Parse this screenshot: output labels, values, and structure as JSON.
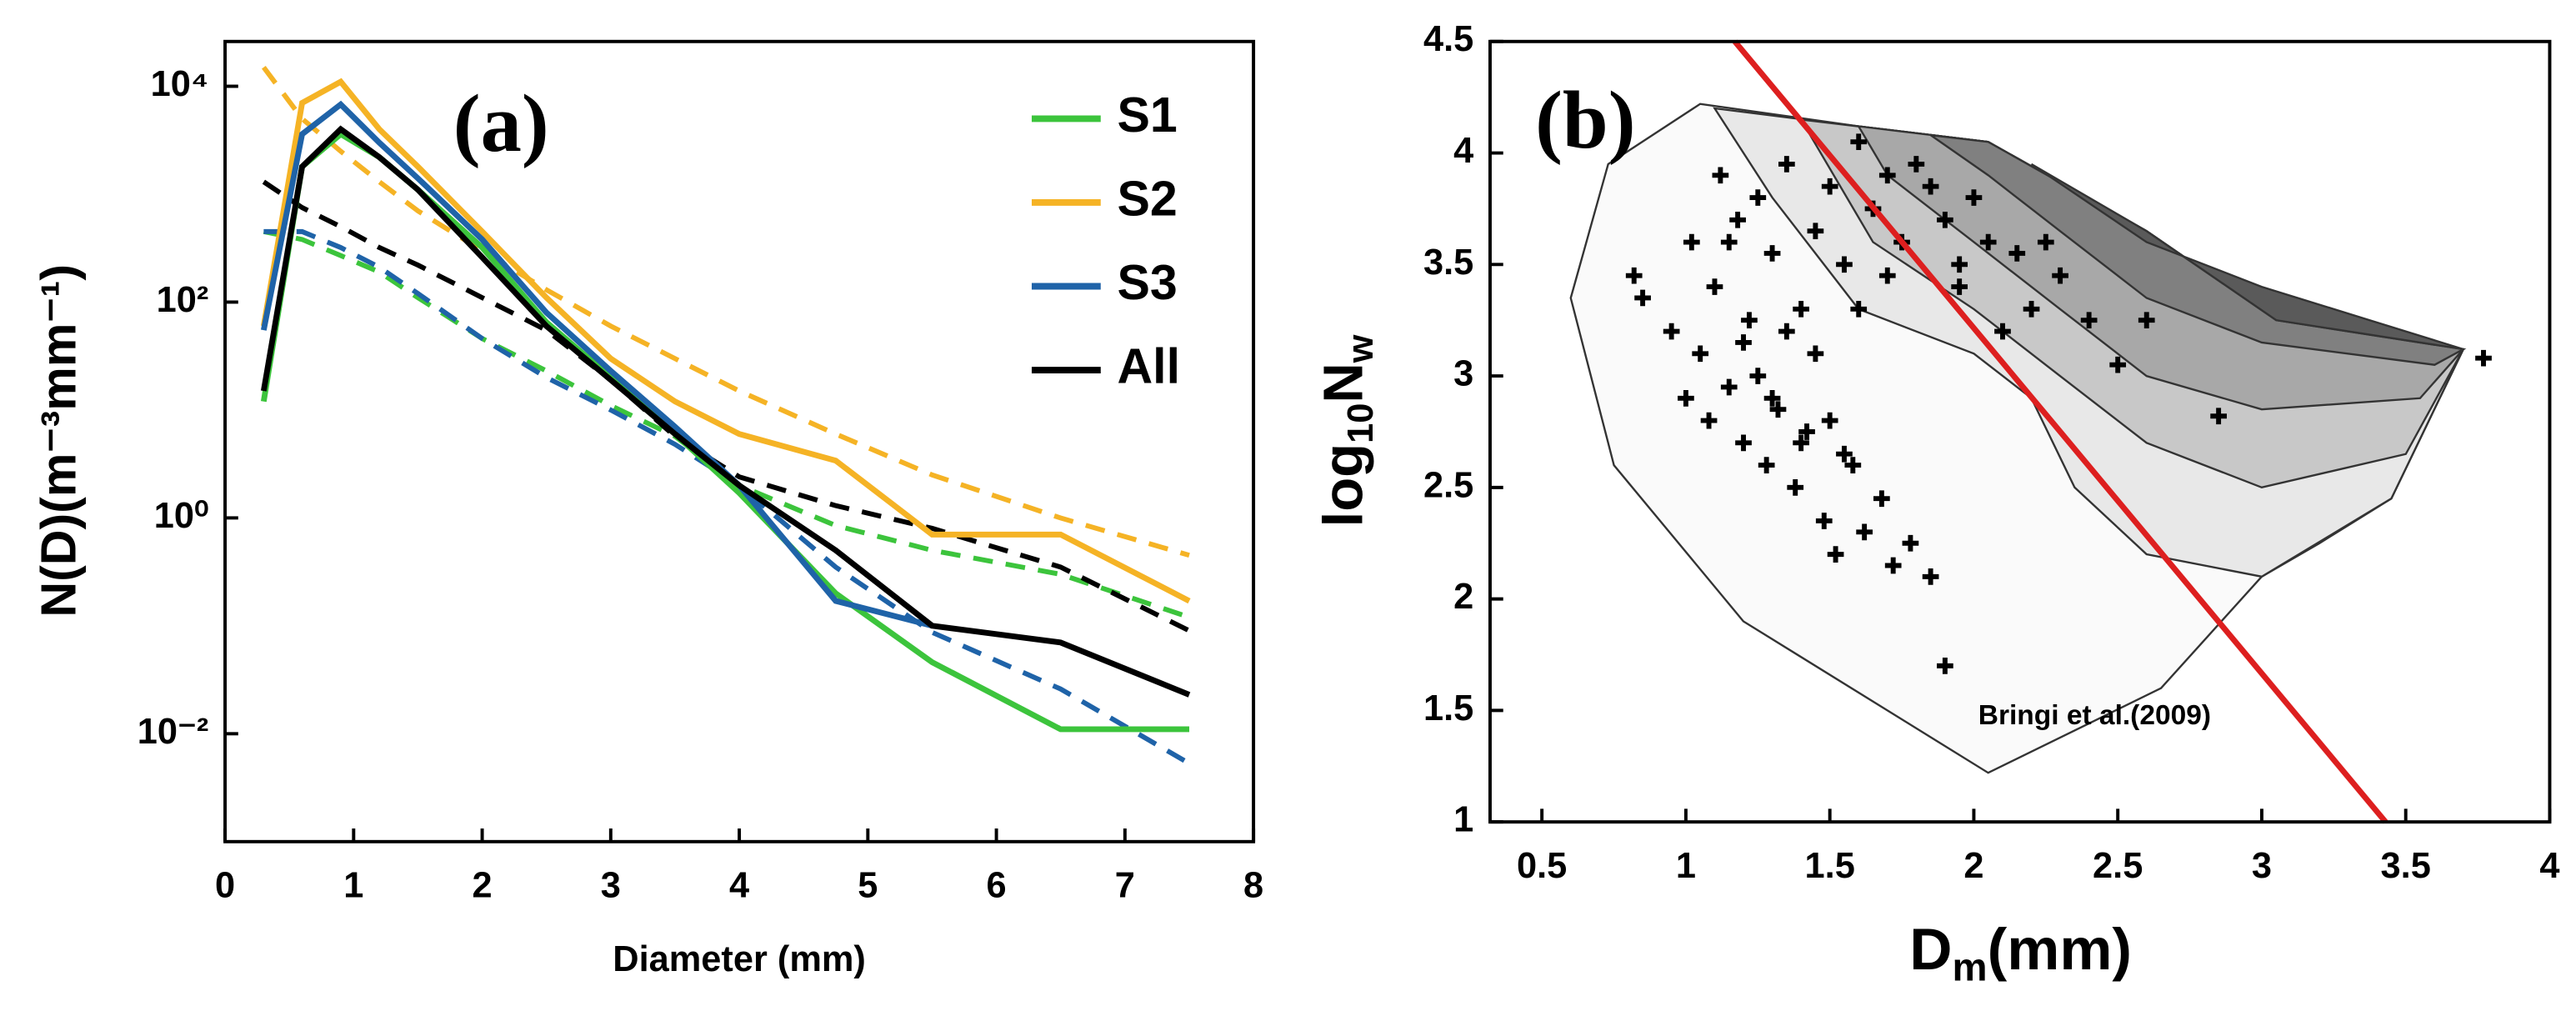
{
  "chart_data": [
    {
      "type": "line",
      "annotation": "(a)",
      "x_label": "Diameter (mm)",
      "y_label": "N(D)(m⁻³mm⁻¹)",
      "log_y": true,
      "legend": "upper right",
      "x": [
        0.3,
        0.6,
        0.9,
        1.2,
        1.5,
        2,
        2.5,
        3,
        3.5,
        4,
        4.75,
        5.5,
        6.5,
        7.5
      ],
      "xlim": [
        0,
        8
      ],
      "xticks": [
        0,
        1,
        2,
        3,
        4,
        5,
        6,
        7,
        8
      ],
      "ylim": [
        0.001,
        26000
      ],
      "yticks": [
        {
          "value": 0.01,
          "label": "10⁻²"
        },
        {
          "value": 1,
          "label": "10⁰"
        },
        {
          "value": 100,
          "label": "10²"
        },
        {
          "value": 10000,
          "label": "10⁴"
        }
      ],
      "series": [
        {
          "name": "S1",
          "color": "#3cc43c",
          "values": [
            12,
            1800,
            3600,
            2200,
            1100,
            320,
            65,
            20,
            6,
            1.7,
            0.2,
            0.046,
            0.011,
            0.011
          ],
          "fit": [
            450,
            380,
            270,
            190,
            110,
            46,
            23,
            11,
            5.7,
            2,
            0.85,
            0.5,
            0.3,
            0.12
          ]
        },
        {
          "name": "S2",
          "color": "#f5b325",
          "values": [
            60,
            7000,
            11000,
            4000,
            1800,
            450,
            110,
            30,
            12,
            6,
            3.4,
            0.7,
            0.7,
            0.17
          ],
          "fit": [
            15000,
            5000,
            2500,
            1300,
            700,
            300,
            130,
            60,
            30,
            15,
            6,
            2.5,
            1,
            0.45
          ]
        },
        {
          "name": "S3",
          "color": "#1f63a8",
          "values": [
            55,
            3600,
            6800,
            3000,
            1400,
            380,
            80,
            23,
            7,
            2,
            0.17,
            0.1,
            null,
            null
          ],
          "fit": [
            450,
            450,
            320,
            210,
            120,
            46,
            20,
            10,
            4.8,
            2,
            0.35,
            0.087,
            0.026,
            0.0053
          ]
        },
        {
          "name": "All",
          "color": "#000000",
          "values": [
            15,
            1800,
            4000,
            2200,
            1100,
            260,
            60,
            19,
            6,
            2,
            0.5,
            0.1,
            0.07,
            0.023
          ],
          "fit": [
            1300,
            750,
            500,
            320,
            220,
            110,
            55,
            19,
            5.7,
            2.4,
            1.3,
            0.8,
            0.35,
            0.09
          ]
        }
      ]
    },
    {
      "type": "scatter",
      "annotation": "(b)",
      "x_label": [
        "D",
        "m",
        "(mm)"
      ],
      "y_label": [
        "log",
        "10",
        "N",
        "w"
      ],
      "reference_label": "Bringi et al.(2009)",
      "xlim": [
        0.32,
        4
      ],
      "xticks": [
        0.5,
        1,
        1.5,
        2,
        2.5,
        3,
        3.5,
        4
      ],
      "ylim": [
        1,
        4.5
      ],
      "yticks": [
        1,
        1.5,
        2,
        2.5,
        3,
        3.5,
        4,
        4.5
      ],
      "reference_line": {
        "color": "#dd1f1f",
        "x": [
          1.17,
          3.43
        ],
        "values": [
          4.5,
          1.0
        ]
      },
      "contours": [
        {
          "color": "#fafafa",
          "x": [
            0.6,
            0.73,
            1.05,
            1.6,
            2.05,
            2.6,
            3.05,
            3.7,
            3.45,
            3.2,
            3.0,
            2.65,
            2.05,
            1.2,
            0.75
          ],
          "values": [
            3.35,
            3.95,
            4.22,
            4.12,
            4.05,
            3.65,
            3.25,
            3.12,
            2.45,
            2.25,
            2.1,
            1.6,
            1.22,
            1.9,
            2.6
          ]
        },
        {
          "color": "#e8e8e8",
          "x": [
            1.1,
            1.6,
            2.05,
            2.6,
            3.05,
            3.7,
            3.45,
            3.0,
            2.6,
            2.35,
            2.2,
            2.0,
            1.6,
            1.3
          ],
          "values": [
            4.2,
            4.12,
            4.05,
            3.65,
            3.25,
            3.12,
            2.45,
            2.1,
            2.2,
            2.5,
            2.9,
            3.1,
            3.3,
            3.8
          ]
        },
        {
          "color": "#c8c8c8",
          "x": [
            1.4,
            2.05,
            2.6,
            3.05,
            3.7,
            3.5,
            3.0,
            2.6,
            2.3,
            2.0,
            1.65
          ],
          "values": [
            4.15,
            4.05,
            3.65,
            3.25,
            3.12,
            2.65,
            2.5,
            2.7,
            3.0,
            3.3,
            3.6
          ]
        },
        {
          "color": "#a8a8a8",
          "x": [
            1.6,
            2.05,
            2.6,
            3.05,
            3.7,
            3.55,
            3.0,
            2.6,
            2.3,
            2.0,
            1.7
          ],
          "values": [
            4.12,
            4.05,
            3.65,
            3.25,
            3.12,
            2.9,
            2.85,
            3.0,
            3.3,
            3.6,
            3.9
          ]
        },
        {
          "color": "#808080",
          "x": [
            1.85,
            2.05,
            2.6,
            3.05,
            3.7,
            3.6,
            3.0,
            2.6,
            2.3,
            2.05
          ],
          "values": [
            4.08,
            4.05,
            3.65,
            3.25,
            3.12,
            3.05,
            3.15,
            3.35,
            3.65,
            3.9
          ]
        },
        {
          "color": "#5a5a5a",
          "x": [
            2.2,
            2.6,
            3.05,
            3.7,
            3.0,
            2.6
          ],
          "values": [
            3.95,
            3.65,
            3.25,
            3.12,
            3.4,
            3.6
          ]
        }
      ],
      "series": [
        {
          "color": "#000000",
          "x": [
            0.82,
            0.85,
            0.95,
            1.0,
            1.02,
            1.05,
            1.08,
            1.1,
            1.12,
            1.15,
            1.18,
            1.2,
            1.22,
            1.25,
            1.28,
            1.3,
            1.32,
            1.35,
            1.38,
            1.4,
            1.42,
            1.45,
            1.48,
            1.5,
            1.52,
            1.55,
            1.58,
            1.6,
            1.62,
            1.65,
            1.68,
            1.7,
            1.72,
            1.75,
            1.78,
            1.8,
            1.85,
            1.9,
            1.95,
            2.0,
            2.05,
            2.1,
            2.15,
            2.2,
            2.25,
            2.3,
            2.4,
            2.5,
            2.6,
            2.85,
            3.77,
            1.3,
            1.4,
            1.5,
            1.45,
            1.35,
            1.25,
            1.55,
            1.6,
            1.7,
            1.85,
            1.9,
            1.95,
            1.15,
            1.2
          ],
          "values": [
            3.45,
            3.35,
            3.2,
            2.9,
            3.6,
            3.1,
            2.8,
            3.4,
            3.9,
            2.95,
            3.7,
            2.7,
            3.25,
            3.8,
            2.6,
            3.55,
            2.85,
            3.95,
            2.5,
            3.3,
            2.75,
            3.65,
            2.35,
            3.85,
            2.2,
            3.5,
            2.6,
            4.05,
            2.3,
            3.75,
            2.45,
            3.9,
            2.15,
            3.6,
            2.25,
            3.95,
            2.1,
            3.7,
            3.4,
            3.8,
            3.6,
            3.2,
            3.55,
            3.3,
            3.6,
            3.45,
            3.25,
            3.05,
            3.25,
            2.82,
            3.08,
            2.9,
            2.7,
            2.8,
            3.1,
            3.2,
            3.0,
            2.65,
            3.3,
            3.45,
            3.85,
            1.7,
            3.5,
            3.6,
            3.15
          ]
        }
      ]
    }
  ]
}
